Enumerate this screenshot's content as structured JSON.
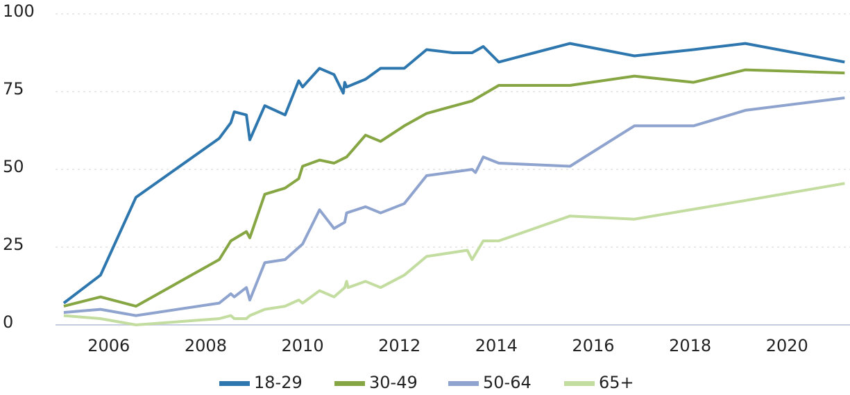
{
  "chart_data": {
    "type": "line",
    "xlim": [
      2004.9,
      2021.3
    ],
    "xticks": [
      2006,
      2008,
      2010,
      2012,
      2014,
      2016,
      2018,
      2020
    ],
    "ylim": [
      0,
      100
    ],
    "yticks": [
      0,
      25,
      50,
      75,
      100
    ],
    "grid": true,
    "legend": "bottom",
    "series": [
      {
        "name": "18-29",
        "color": "#2e77ae",
        "x": [
          2005.07,
          2005.83,
          2006.56,
          2008.28,
          2008.52,
          2008.59,
          2008.84,
          2008.91,
          2009.22,
          2009.64,
          2009.92,
          2010.0,
          2010.35,
          2010.65,
          2010.84,
          2010.87,
          2010.91,
          2011.3,
          2011.61,
          2012.1,
          2012.56,
          2013.1,
          2013.5,
          2013.73,
          2014.05,
          2015.52,
          2016.85,
          2018.07,
          2019.14,
          2021.19
        ],
        "values": [
          7,
          16,
          41,
          60,
          65,
          68.5,
          67.5,
          59.5,
          70.5,
          67.5,
          78.5,
          76.5,
          82.5,
          80.5,
          74.5,
          78,
          76.5,
          79,
          82.5,
          82.5,
          88.5,
          87.5,
          87.5,
          89.5,
          84.5,
          90.5,
          86.5,
          88.5,
          90.5,
          84.5
        ]
      },
      {
        "name": "30-49",
        "color": "#86a543",
        "x": [
          2005.07,
          2005.83,
          2006.56,
          2008.28,
          2008.52,
          2008.84,
          2008.91,
          2009.22,
          2009.64,
          2009.92,
          2010.0,
          2010.35,
          2010.65,
          2010.91,
          2011.3,
          2011.61,
          2012.1,
          2012.56,
          2013.5,
          2014.05,
          2015.52,
          2016.85,
          2018.07,
          2019.14,
          2021.19
        ],
        "values": [
          6,
          9,
          6,
          21,
          27,
          30,
          28,
          42,
          44,
          47,
          51,
          53,
          52,
          54,
          61,
          59,
          64,
          68,
          72,
          77,
          77,
          80,
          78,
          82,
          81
        ]
      },
      {
        "name": "50-64",
        "color": "#8fa3cf",
        "x": [
          2005.07,
          2005.83,
          2006.56,
          2008.28,
          2008.52,
          2008.59,
          2008.84,
          2008.91,
          2009.22,
          2009.64,
          2010.0,
          2010.35,
          2010.65,
          2010.87,
          2010.91,
          2011.3,
          2011.61,
          2012.1,
          2012.56,
          2013.5,
          2013.57,
          2013.73,
          2014.05,
          2015.52,
          2016.85,
          2018.07,
          2019.14,
          2021.19
        ],
        "values": [
          4,
          5,
          3,
          7,
          10,
          9,
          12,
          8,
          20,
          21,
          26,
          37,
          31,
          33,
          36,
          38,
          36,
          39,
          48,
          50,
          49,
          54,
          52,
          51,
          64,
          64,
          69,
          73
        ]
      },
      {
        "name": "65+",
        "color": "#c3dca0",
        "x": [
          2005.07,
          2005.83,
          2006.56,
          2008.28,
          2008.52,
          2008.59,
          2008.84,
          2008.91,
          2009.22,
          2009.64,
          2009.92,
          2010.0,
          2010.35,
          2010.65,
          2010.87,
          2010.91,
          2010.94,
          2011.3,
          2011.61,
          2012.1,
          2012.56,
          2013.4,
          2013.5,
          2013.73,
          2014.05,
          2015.52,
          2016.85,
          2019.14,
          2021.19
        ],
        "values": [
          3,
          2,
          0,
          2,
          3,
          2,
          2,
          3,
          5,
          6,
          8,
          7,
          11,
          9,
          12,
          14,
          12,
          14,
          12,
          16,
          22,
          24,
          21,
          27,
          27,
          35,
          34,
          40,
          45.5
        ]
      }
    ]
  }
}
